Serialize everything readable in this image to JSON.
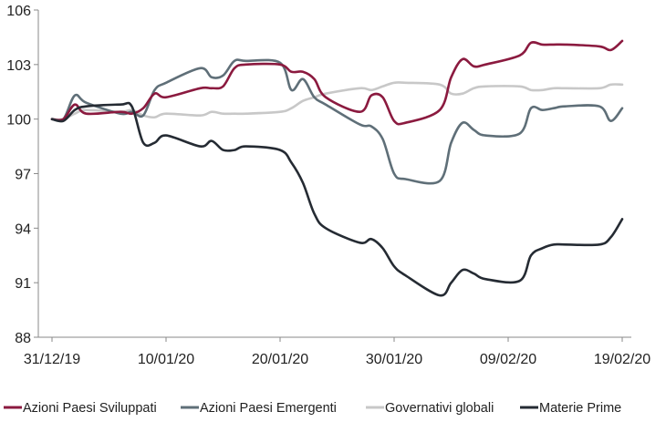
{
  "chart_data": {
    "type": "line",
    "title": "",
    "xlabel": "",
    "ylabel": "",
    "ylim": [
      88,
      106
    ],
    "yticks": [
      88,
      91,
      94,
      97,
      100,
      103,
      106
    ],
    "xlim": [
      "2019-12-31",
      "2020-02-19"
    ],
    "xticks": [
      "2019-12-31",
      "2020-01-10",
      "2020-01-20",
      "2020-01-30",
      "2020-02-09",
      "2020-02-19"
    ],
    "xtick_labels": [
      "31/12/19",
      "10/01/20",
      "20/01/20",
      "30/01/20",
      "09/02/20",
      "19/02/20"
    ],
    "grid": false,
    "legend_position": "bottom",
    "series": [
      {
        "name": "Azioni Paesi Sviluppati",
        "color": "#8b1a3f",
        "points": [
          [
            "2019-12-31",
            100.0
          ],
          [
            "2020-01-01",
            100.0
          ],
          [
            "2020-01-02",
            100.8
          ],
          [
            "2020-01-03",
            100.3
          ],
          [
            "2020-01-06",
            100.4
          ],
          [
            "2020-01-07",
            100.3
          ],
          [
            "2020-01-08",
            100.6
          ],
          [
            "2020-01-09",
            101.4
          ],
          [
            "2020-01-10",
            101.2
          ],
          [
            "2020-01-13",
            101.7
          ],
          [
            "2020-01-14",
            101.7
          ],
          [
            "2020-01-15",
            101.8
          ],
          [
            "2020-01-16",
            102.8
          ],
          [
            "2020-01-17",
            103.0
          ],
          [
            "2020-01-20",
            103.0
          ],
          [
            "2020-01-21",
            102.6
          ],
          [
            "2020-01-22",
            102.6
          ],
          [
            "2020-01-23",
            102.2
          ],
          [
            "2020-01-24",
            101.2
          ],
          [
            "2020-01-27",
            100.4
          ],
          [
            "2020-01-28",
            101.3
          ],
          [
            "2020-01-29",
            101.2
          ],
          [
            "2020-01-30",
            99.9
          ],
          [
            "2020-01-31",
            99.8
          ],
          [
            "2020-02-03",
            100.5
          ],
          [
            "2020-02-04",
            102.3
          ],
          [
            "2020-02-05",
            103.3
          ],
          [
            "2020-02-06",
            102.9
          ],
          [
            "2020-02-07",
            103.0
          ],
          [
            "2020-02-10",
            103.5
          ],
          [
            "2020-02-11",
            104.2
          ],
          [
            "2020-02-12",
            104.1
          ],
          [
            "2020-02-13",
            104.1
          ],
          [
            "2020-02-14",
            104.1
          ],
          [
            "2020-02-17",
            104.0
          ],
          [
            "2020-02-18",
            103.8
          ],
          [
            "2020-02-19",
            104.3
          ]
        ]
      },
      {
        "name": "Azioni Paesi Emergenti",
        "color": "#5f6f78",
        "points": [
          [
            "2019-12-31",
            100.0
          ],
          [
            "2020-01-01",
            100.0
          ],
          [
            "2020-01-02",
            101.3
          ],
          [
            "2020-01-03",
            100.9
          ],
          [
            "2020-01-06",
            100.3
          ],
          [
            "2020-01-07",
            100.4
          ],
          [
            "2020-01-08",
            100.2
          ],
          [
            "2020-01-09",
            101.6
          ],
          [
            "2020-01-10",
            102.0
          ],
          [
            "2020-01-13",
            102.8
          ],
          [
            "2020-01-14",
            102.3
          ],
          [
            "2020-01-15",
            102.4
          ],
          [
            "2020-01-16",
            103.2
          ],
          [
            "2020-01-17",
            103.2
          ],
          [
            "2020-01-20",
            103.1
          ],
          [
            "2020-01-21",
            101.6
          ],
          [
            "2020-01-22",
            102.2
          ],
          [
            "2020-01-23",
            101.2
          ],
          [
            "2020-01-24",
            100.8
          ],
          [
            "2020-01-27",
            99.7
          ],
          [
            "2020-01-28",
            99.6
          ],
          [
            "2020-01-29",
            98.9
          ],
          [
            "2020-01-30",
            97.0
          ],
          [
            "2020-01-31",
            96.7
          ],
          [
            "2020-02-03",
            96.6
          ],
          [
            "2020-02-04",
            98.7
          ],
          [
            "2020-02-05",
            99.8
          ],
          [
            "2020-02-06",
            99.4
          ],
          [
            "2020-02-07",
            99.1
          ],
          [
            "2020-02-10",
            99.2
          ],
          [
            "2020-02-11",
            100.6
          ],
          [
            "2020-02-12",
            100.5
          ],
          [
            "2020-02-13",
            100.6
          ],
          [
            "2020-02-14",
            100.7
          ],
          [
            "2020-02-17",
            100.7
          ],
          [
            "2020-02-18",
            99.9
          ],
          [
            "2020-02-19",
            100.6
          ]
        ]
      },
      {
        "name": "Governativi globali",
        "color": "#c8c8c8",
        "points": [
          [
            "2019-12-31",
            100.0
          ],
          [
            "2020-01-01",
            100.0
          ],
          [
            "2020-01-02",
            100.3
          ],
          [
            "2020-01-03",
            100.5
          ],
          [
            "2020-01-06",
            100.4
          ],
          [
            "2020-01-07",
            100.5
          ],
          [
            "2020-01-08",
            100.2
          ],
          [
            "2020-01-09",
            100.1
          ],
          [
            "2020-01-10",
            100.3
          ],
          [
            "2020-01-13",
            100.2
          ],
          [
            "2020-01-14",
            100.4
          ],
          [
            "2020-01-15",
            100.3
          ],
          [
            "2020-01-16",
            100.3
          ],
          [
            "2020-01-17",
            100.3
          ],
          [
            "2020-01-20",
            100.4
          ],
          [
            "2020-01-21",
            100.6
          ],
          [
            "2020-01-22",
            101.0
          ],
          [
            "2020-01-23",
            101.2
          ],
          [
            "2020-01-24",
            101.4
          ],
          [
            "2020-01-27",
            101.7
          ],
          [
            "2020-01-28",
            101.6
          ],
          [
            "2020-01-29",
            101.8
          ],
          [
            "2020-01-30",
            102.0
          ],
          [
            "2020-01-31",
            102.0
          ],
          [
            "2020-02-03",
            101.9
          ],
          [
            "2020-02-04",
            101.4
          ],
          [
            "2020-02-05",
            101.4
          ],
          [
            "2020-02-06",
            101.7
          ],
          [
            "2020-02-07",
            101.8
          ],
          [
            "2020-02-10",
            101.8
          ],
          [
            "2020-02-11",
            101.6
          ],
          [
            "2020-02-12",
            101.6
          ],
          [
            "2020-02-13",
            101.7
          ],
          [
            "2020-02-14",
            101.7
          ],
          [
            "2020-02-17",
            101.7
          ],
          [
            "2020-02-18",
            101.9
          ],
          [
            "2020-02-19",
            101.9
          ]
        ]
      },
      {
        "name": "Materie Prime",
        "color": "#252b33",
        "points": [
          [
            "2019-12-31",
            100.0
          ],
          [
            "2020-01-01",
            99.9
          ],
          [
            "2020-01-02",
            100.5
          ],
          [
            "2020-01-03",
            100.7
          ],
          [
            "2020-01-06",
            100.8
          ],
          [
            "2020-01-07",
            100.7
          ],
          [
            "2020-01-08",
            98.7
          ],
          [
            "2020-01-09",
            98.7
          ],
          [
            "2020-01-10",
            99.1
          ],
          [
            "2020-01-13",
            98.5
          ],
          [
            "2020-01-14",
            98.8
          ],
          [
            "2020-01-15",
            98.3
          ],
          [
            "2020-01-16",
            98.3
          ],
          [
            "2020-01-17",
            98.5
          ],
          [
            "2020-01-20",
            98.3
          ],
          [
            "2020-01-21",
            97.6
          ],
          [
            "2020-01-22",
            96.5
          ],
          [
            "2020-01-23",
            94.8
          ],
          [
            "2020-01-24",
            94.0
          ],
          [
            "2020-01-27",
            93.2
          ],
          [
            "2020-01-28",
            93.4
          ],
          [
            "2020-01-29",
            92.9
          ],
          [
            "2020-01-30",
            91.9
          ],
          [
            "2020-01-31",
            91.4
          ],
          [
            "2020-02-03",
            90.3
          ],
          [
            "2020-02-04",
            91.0
          ],
          [
            "2020-02-05",
            91.7
          ],
          [
            "2020-02-06",
            91.5
          ],
          [
            "2020-02-07",
            91.2
          ],
          [
            "2020-02-10",
            91.1
          ],
          [
            "2020-02-11",
            92.5
          ],
          [
            "2020-02-12",
            92.9
          ],
          [
            "2020-02-13",
            93.1
          ],
          [
            "2020-02-14",
            93.1
          ],
          [
            "2020-02-17",
            93.1
          ],
          [
            "2020-02-18",
            93.5
          ],
          [
            "2020-02-19",
            94.5
          ]
        ]
      }
    ]
  }
}
